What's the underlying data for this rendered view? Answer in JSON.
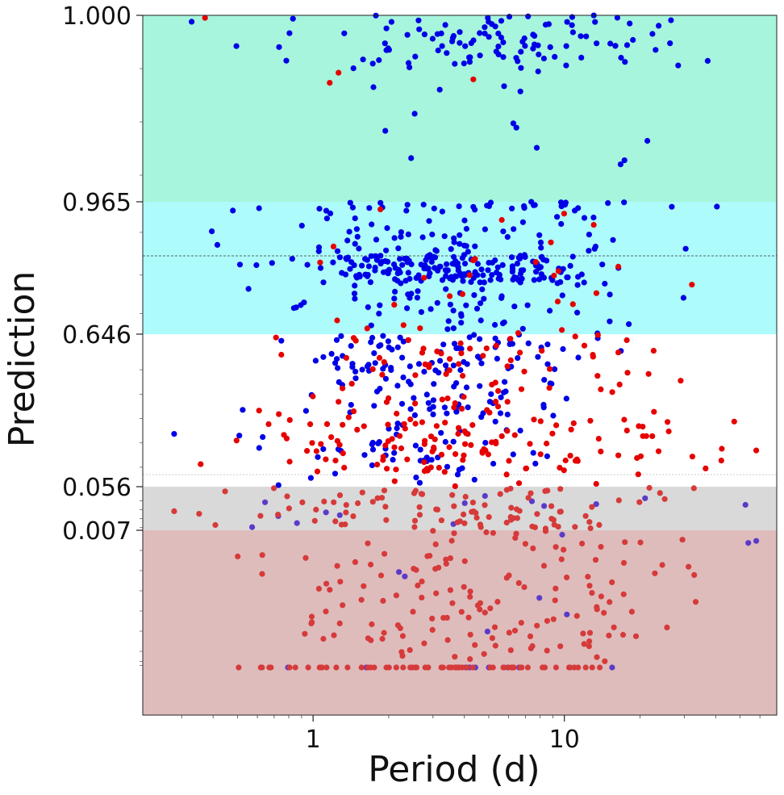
{
  "chart_data": {
    "type": "scatter",
    "xlabel": "Period (d)",
    "ylabel": "Prediction",
    "x_scale": "log",
    "xlim": [
      0.21,
      70
    ],
    "x_ticks": [
      {
        "value": 1,
        "label": "1"
      },
      {
        "value": 10,
        "label": "10"
      }
    ],
    "y_ticks": [
      {
        "value": 1.0,
        "label": "1.000"
      },
      {
        "value": 0.965,
        "label": "0.965"
      },
      {
        "value": 0.646,
        "label": "0.646"
      },
      {
        "value": 0.056,
        "label": "0.056"
      },
      {
        "value": 0.007,
        "label": "0.007"
      }
    ],
    "bands": [
      {
        "name": "band-top",
        "from": 0.965,
        "to": 1.0,
        "color": "#a6f5dc"
      },
      {
        "name": "band-upper",
        "from": 0.646,
        "to": 0.965,
        "color": "#adfbfa"
      },
      {
        "name": "band-middle",
        "from": 0.056,
        "to": 0.646,
        "color": "#ffffff"
      },
      {
        "name": "band-lower",
        "from": 0.007,
        "to": 0.056,
        "color": "#d9d9d9"
      },
      {
        "name": "band-bottom",
        "from": 0.0,
        "to": 0.007,
        "color": "#dfbcbc"
      }
    ],
    "reference_lines": [
      {
        "value": 0.85,
        "style": "dashed",
        "color": "#333333"
      },
      {
        "value": 0.07,
        "style": "dotted",
        "color": "#bbbbbb"
      }
    ],
    "series": [
      {
        "name": "blue",
        "color": "#0000e6",
        "color_in_low_bands": "#5b3bc8",
        "density": [
          {
            "y": [
              0.99,
              1.0
            ],
            "n": 110,
            "x_center": 5.5,
            "x_spread": 0.35
          },
          {
            "y": [
              0.972,
              0.99
            ],
            "n": 14,
            "x_center": 5.5,
            "x_spread": 0.45
          },
          {
            "y": [
              0.95,
              0.965
            ],
            "n": 30,
            "x_center": 4.5,
            "x_spread": 0.4
          },
          {
            "y": [
              0.85,
              0.95
            ],
            "n": 70,
            "x_center": 4.0,
            "x_spread": 0.38
          },
          {
            "y": [
              0.78,
              0.85
            ],
            "n": 190,
            "x_center": 3.6,
            "x_spread": 0.3
          },
          {
            "y": [
              0.646,
              0.78
            ],
            "n": 60,
            "x_center": 3.5,
            "x_spread": 0.38
          },
          {
            "y": [
              0.5,
              0.646
            ],
            "n": 75,
            "x_center": 3.3,
            "x_spread": 0.3
          },
          {
            "y": [
              0.3,
              0.5
            ],
            "n": 65,
            "x_center": 3.0,
            "x_spread": 0.28
          },
          {
            "y": [
              0.056,
              0.3
            ],
            "n": 55,
            "x_center": 2.6,
            "x_spread": 0.3
          },
          {
            "y": [
              0.007,
              0.056
            ],
            "n": 14,
            "x_center": 2.5,
            "x_spread": 0.45
          },
          {
            "y": [
              0.001,
              0.007
            ],
            "n": 8,
            "x_center": 3.5,
            "x_spread": 0.45
          },
          {
            "y": [
              0.0002,
              0.0002
            ],
            "n": 9,
            "x_center": 3.5,
            "x_spread": 0.4
          }
        ]
      },
      {
        "name": "red",
        "color": "#e60000",
        "color_in_low_bands": "#d63a3a",
        "density": [
          {
            "y": [
              0.985,
              1.0
            ],
            "n": 4,
            "x_center": 6.0,
            "x_spread": 0.45
          },
          {
            "y": [
              0.85,
              0.965
            ],
            "n": 6,
            "x_center": 5.0,
            "x_spread": 0.45
          },
          {
            "y": [
              0.646,
              0.85
            ],
            "n": 22,
            "x_center": 4.0,
            "x_spread": 0.45
          },
          {
            "y": [
              0.3,
              0.646
            ],
            "n": 80,
            "x_center": 4.5,
            "x_spread": 0.42
          },
          {
            "y": [
              0.056,
              0.3
            ],
            "n": 130,
            "x_center": 4.5,
            "x_spread": 0.42
          },
          {
            "y": [
              0.007,
              0.056
            ],
            "n": 95,
            "x_center": 4.5,
            "x_spread": 0.42
          },
          {
            "y": [
              0.0005,
              0.007
            ],
            "n": 150,
            "x_center": 4.2,
            "x_spread": 0.4
          },
          {
            "y": [
              0.0002,
              0.0002
            ],
            "n": 60,
            "x_center": 3.5,
            "x_spread": 0.38
          }
        ]
      }
    ]
  }
}
